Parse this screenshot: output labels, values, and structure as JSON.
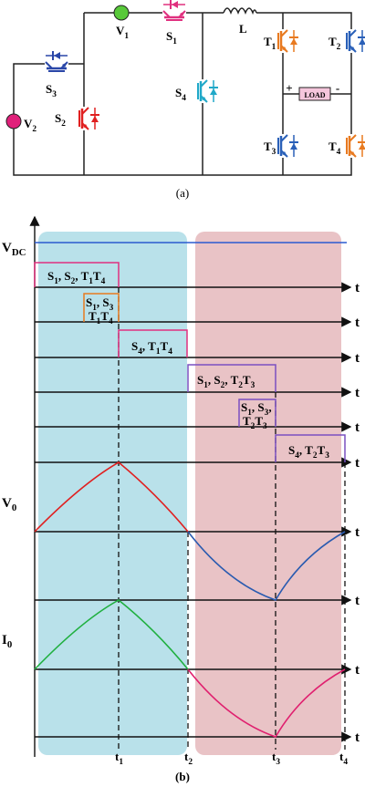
{
  "circuit": {
    "labels": {
      "v1": [
        "V",
        "1"
      ],
      "s1": [
        "S",
        "1"
      ],
      "l": "L",
      "t1": [
        "T",
        "1"
      ],
      "t2": [
        "T",
        "2"
      ],
      "s3": [
        "S",
        "3"
      ],
      "v2": [
        "V",
        "2"
      ],
      "s2": [
        "S",
        "2"
      ],
      "s4": [
        "S",
        "4"
      ],
      "plus": "+",
      "load": "LOAD",
      "minus": "-",
      "t3": [
        "T",
        "3"
      ],
      "t4": [
        "T",
        "4"
      ]
    },
    "caption": "(a)"
  },
  "timing": {
    "vdc": [
      "V",
      "DC"
    ],
    "states": [
      [
        [
          "S",
          "1",
          ", S",
          "2",
          ", T",
          "1",
          "T",
          "4"
        ]
      ],
      [
        [
          "S",
          "1",
          ", S",
          "3"
        ],
        [
          "T",
          "1",
          "T",
          "4"
        ]
      ],
      [
        [
          "S",
          "4",
          ", T",
          "1",
          "T",
          "4"
        ]
      ],
      [
        [
          "S",
          "1",
          ", S",
          "2",
          ", T",
          "2",
          "T",
          "3"
        ]
      ],
      [
        [
          "S",
          "1",
          ", S",
          "3",
          ","
        ],
        [
          "T",
          "2",
          "T",
          "3"
        ]
      ],
      [
        [
          "S",
          "4",
          ", T",
          "2",
          "T",
          "3"
        ]
      ]
    ],
    "v0": [
      "V",
      "0"
    ],
    "i0": [
      "I",
      "0"
    ],
    "axis_t": [
      "t",
      "t",
      "t",
      "t",
      "t",
      "t",
      "t",
      "t",
      "t",
      "t"
    ],
    "times": [
      [
        "t",
        "1"
      ],
      [
        "t",
        "2"
      ],
      [
        "t",
        "3"
      ],
      [
        "t",
        "4"
      ]
    ],
    "caption": "(b)"
  }
}
